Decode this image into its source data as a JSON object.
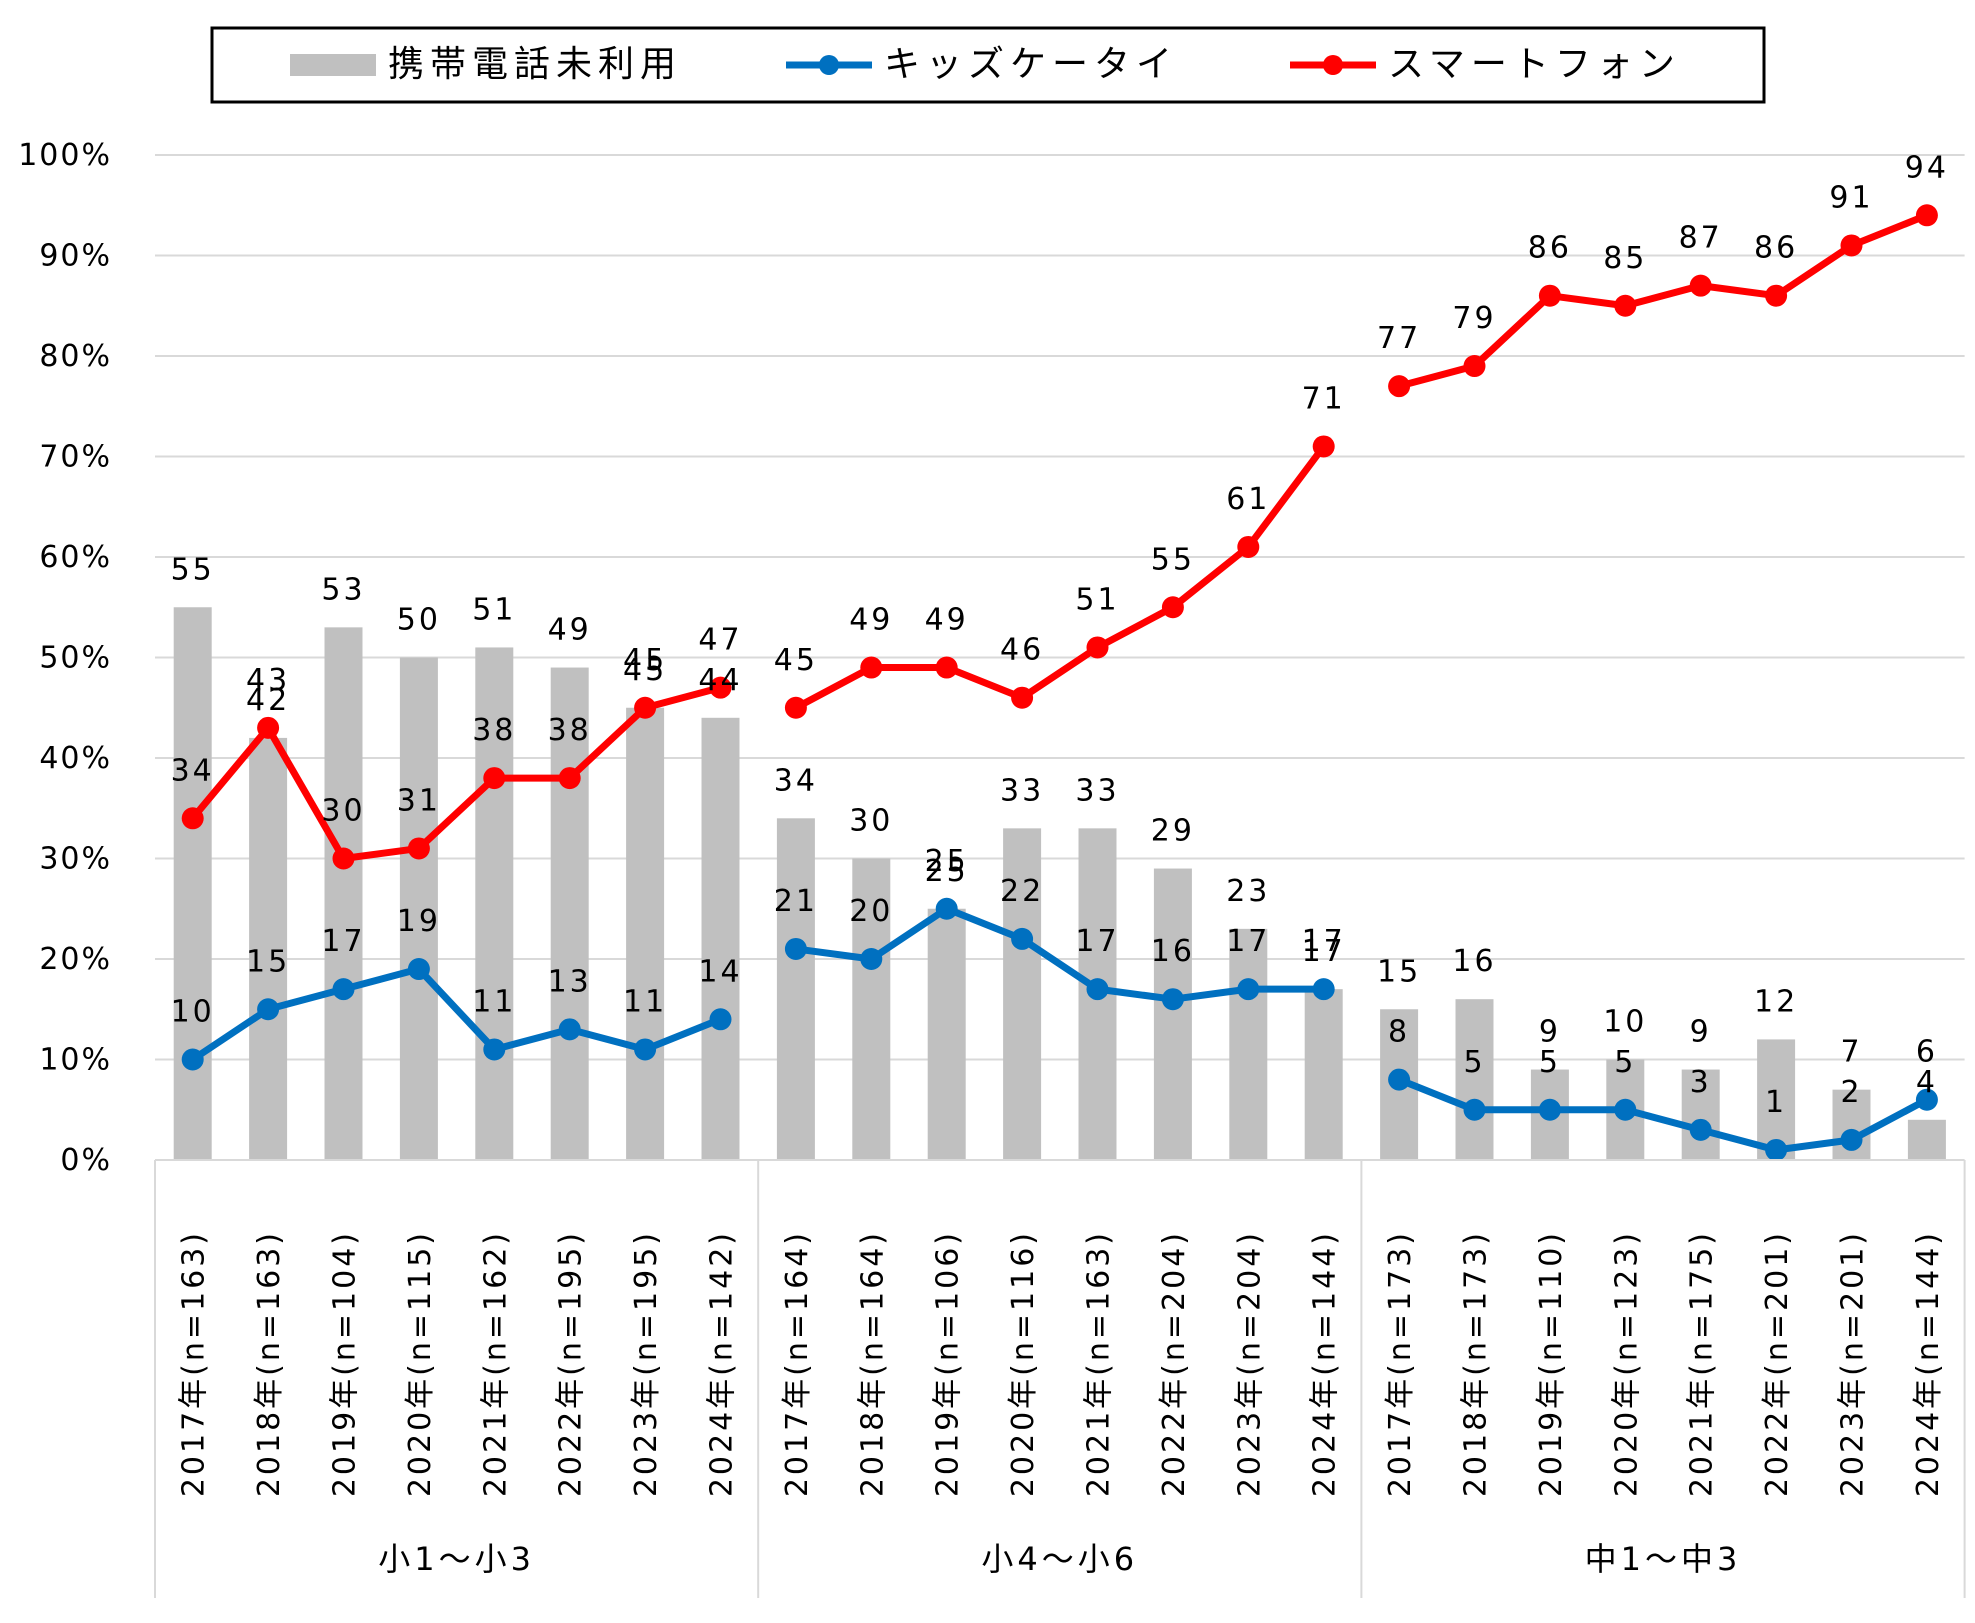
{
  "chart_data": {
    "type": "bar",
    "y_ticks": [
      "0%",
      "10%",
      "20%",
      "30%",
      "40%",
      "50%",
      "60%",
      "70%",
      "80%",
      "90%",
      "100%"
    ],
    "ylim": [
      0,
      100
    ],
    "grid": true,
    "legend_position": "top",
    "colors": {
      "bar": "#c0c0c0",
      "kids": "#0070c0",
      "smart": "#ff0000",
      "grid": "#d9d9d9"
    },
    "groups": [
      {
        "name": "小1〜小3",
        "categories": [
          "2017年(n=163)",
          "2018年(n=163)",
          "2019年(n=104)",
          "2020年(n=115)",
          "2021年(n=162)",
          "2022年(n=195)",
          "2023年(n=195)",
          "2024年(n=142)"
        ],
        "bar_values": [
          55,
          42,
          53,
          50,
          51,
          49,
          45,
          44
        ],
        "bar_labels": [
          "55",
          "42",
          "53",
          "50",
          "51",
          "49",
          "45",
          "44"
        ],
        "kids_values": [
          10,
          15,
          17,
          19,
          11,
          13,
          11,
          14
        ],
        "kids_labels": [
          "10",
          "15",
          "17",
          "19",
          "11",
          "13",
          "11",
          "14"
        ],
        "smart_values": [
          34,
          43,
          30,
          31,
          38,
          38,
          45,
          47
        ],
        "smart_labels": [
          "34",
          "43",
          "30",
          "31",
          "38",
          "38",
          "45",
          "47"
        ]
      },
      {
        "name": "小4〜小6",
        "categories": [
          "2017年(n=164)",
          "2018年(n=164)",
          "2019年(n=106)",
          "2020年(n=116)",
          "2021年(n=163)",
          "2022年(n=204)",
          "2023年(n=204)",
          "2024年(n=144)"
        ],
        "bar_values": [
          34,
          30,
          25,
          33,
          33,
          29,
          23,
          17
        ],
        "bar_labels": [
          "34",
          "30",
          "25",
          "33",
          "33",
          "29",
          "23",
          "17"
        ],
        "kids_values": [
          21,
          20,
          25,
          22,
          17,
          16,
          17,
          17
        ],
        "kids_labels": [
          "21",
          "20",
          "25",
          "22",
          "17",
          "16",
          "17",
          "17"
        ],
        "smart_values": [
          45,
          49,
          49,
          46,
          51,
          55,
          61,
          71
        ],
        "smart_labels": [
          "45",
          "49",
          "49",
          "46",
          "51",
          "55",
          "61",
          "71"
        ]
      },
      {
        "name": "中1〜中3",
        "categories": [
          "2017年(n=173)",
          "2018年(n=173)",
          "2019年(n=110)",
          "2020年(n=123)",
          "2021年(n=175)",
          "2022年(n=201)",
          "2023年(n=201)",
          "2024年(n=144)"
        ],
        "bar_values": [
          15,
          16,
          9,
          10,
          9,
          12,
          7,
          4
        ],
        "bar_labels": [
          "15",
          "16",
          "9",
          "10",
          "9",
          "12",
          "7",
          "4"
        ],
        "kids_values": [
          8,
          5,
          5,
          5,
          3,
          1,
          2,
          6
        ],
        "kids_labels": [
          "8",
          "5",
          "5",
          "5",
          "3",
          "1",
          "2",
          "6"
        ],
        "smart_values": [
          77,
          79,
          86,
          85,
          87,
          86,
          91,
          94
        ],
        "smart_labels": [
          "77",
          "79",
          "86",
          "85",
          "87",
          "86",
          "91",
          "94"
        ]
      }
    ],
    "series": [
      {
        "name": "携帯電話未利用",
        "kind": "bar"
      },
      {
        "name": "キッズケータイ",
        "kind": "line"
      },
      {
        "name": "スマートフォン",
        "kind": "line"
      }
    ]
  }
}
